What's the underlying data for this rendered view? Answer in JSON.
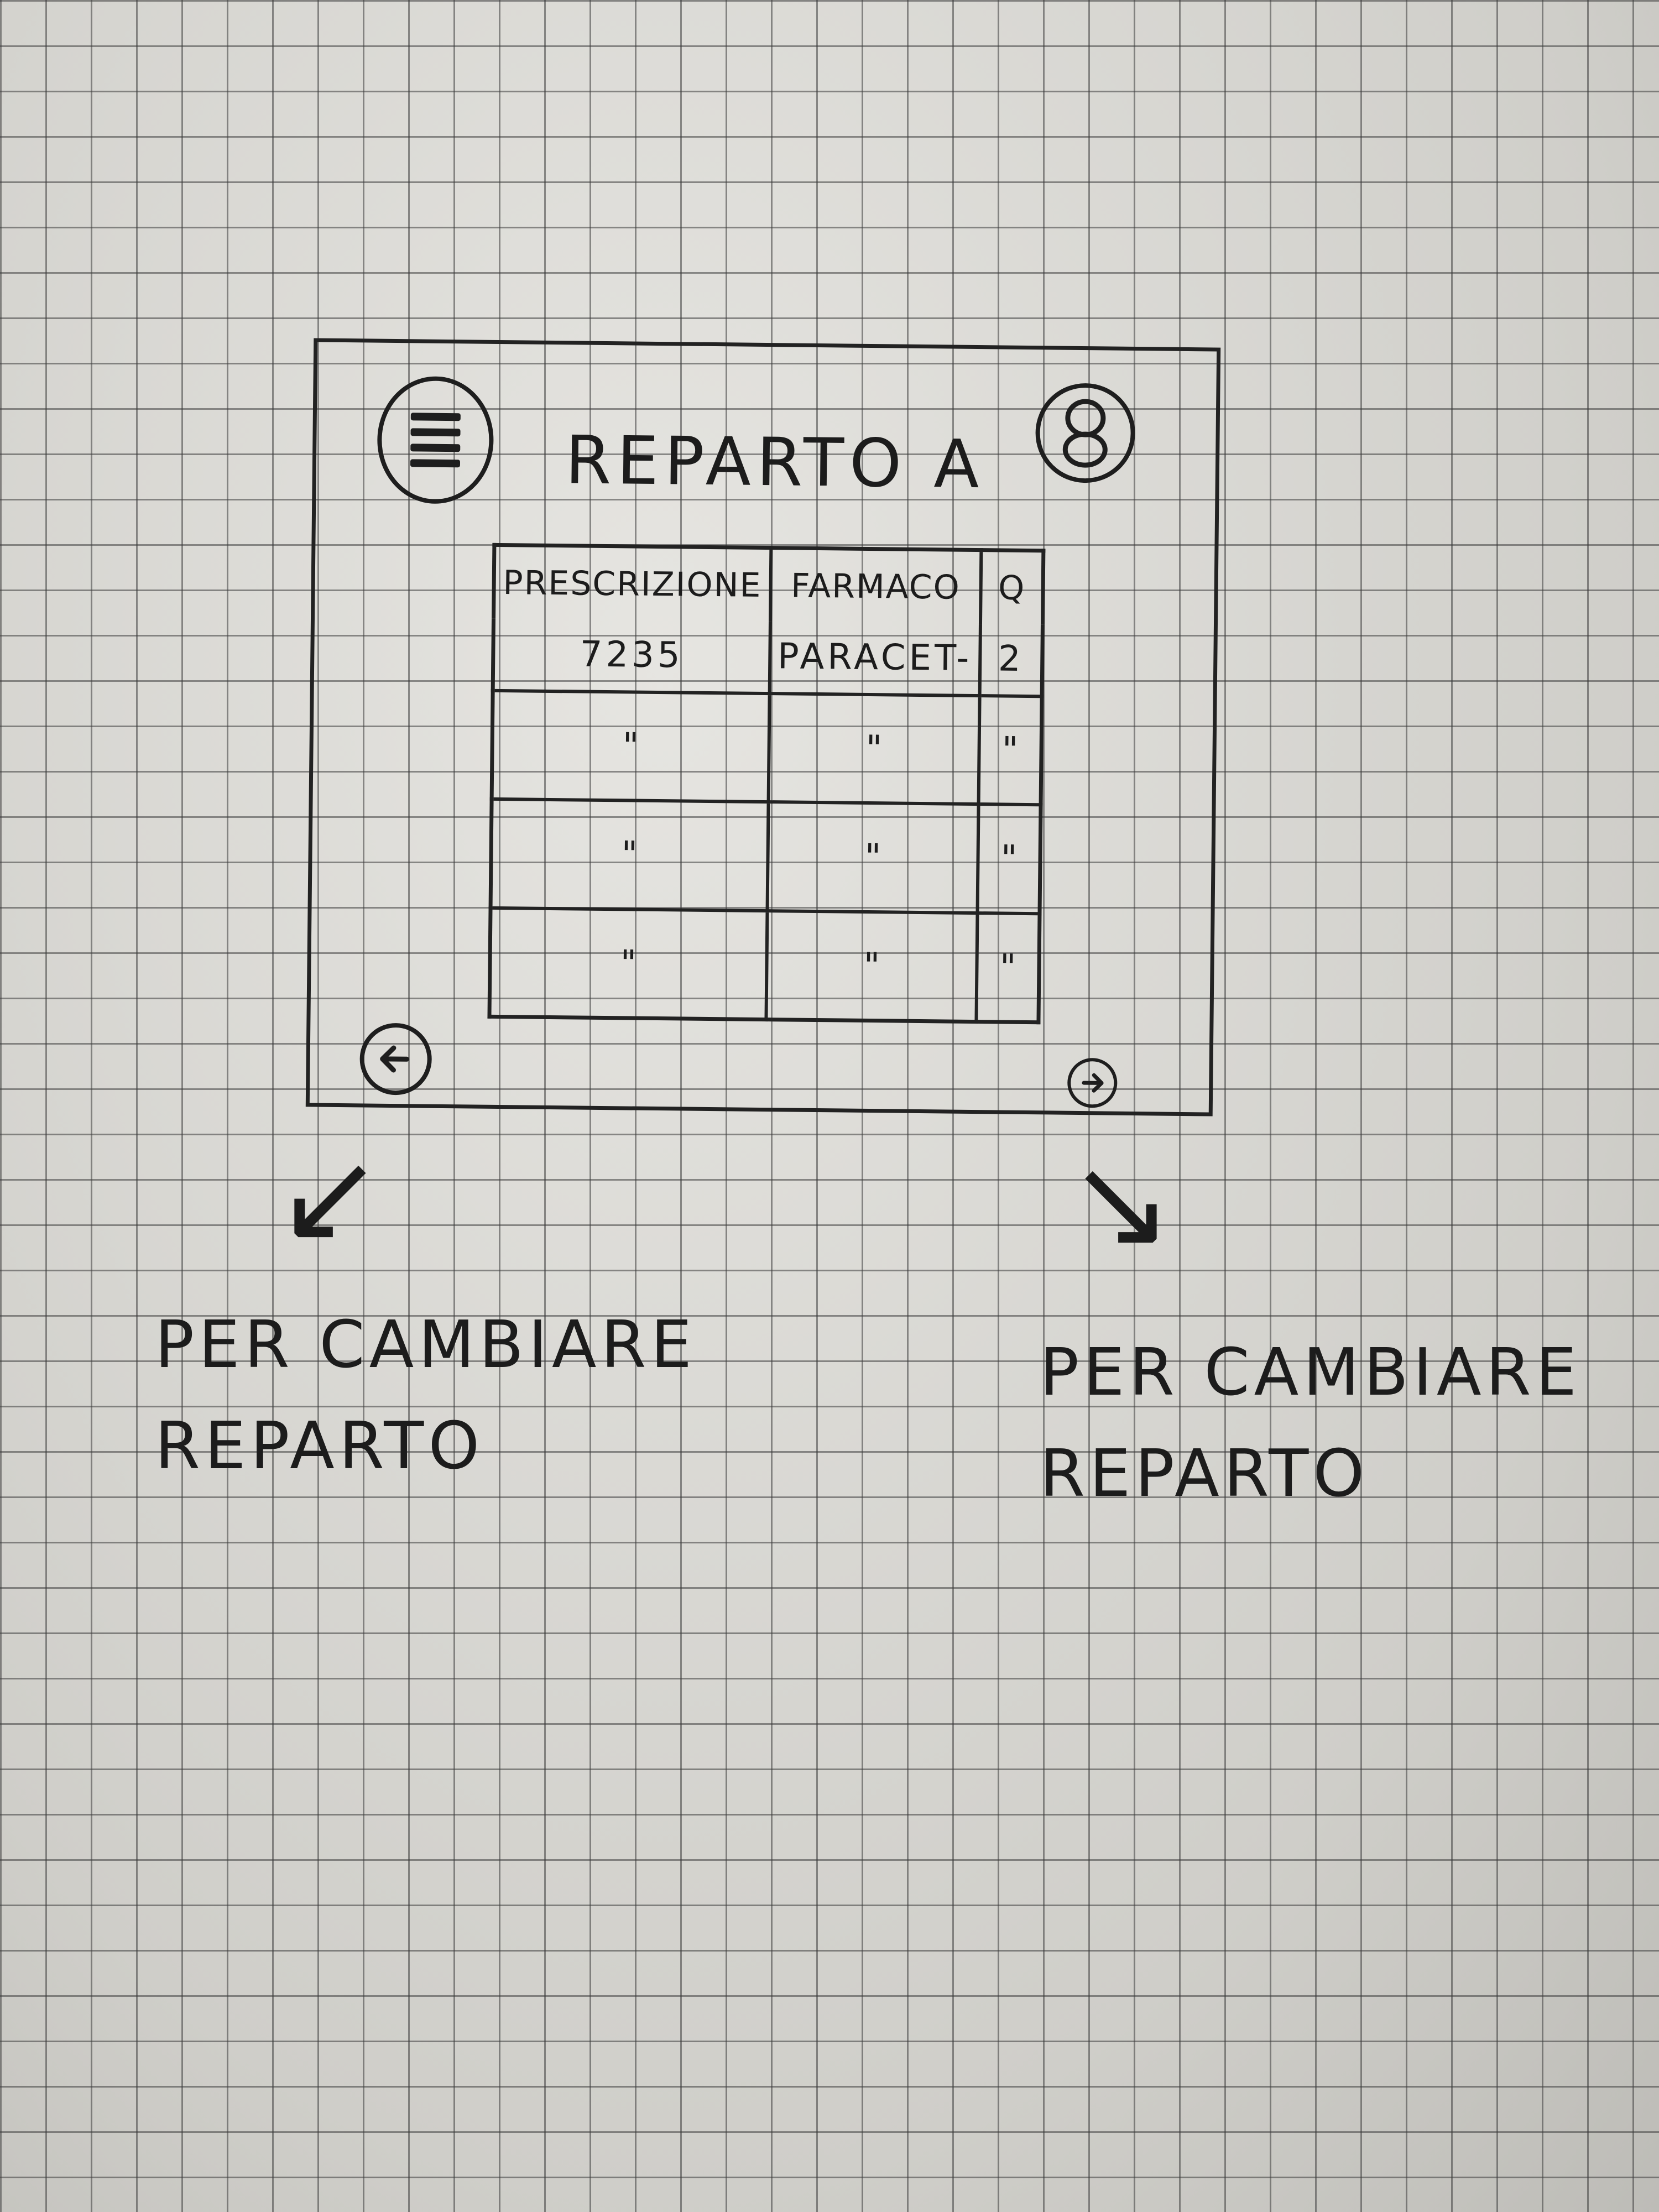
{
  "header": {
    "title": "REPARTO A",
    "menu_icon": "hamburger-menu-icon",
    "profile_icon": "user-icon"
  },
  "table": {
    "columns": [
      "PRESCRIZIONE",
      "FARMACO",
      "Q"
    ],
    "rows": [
      [
        "7235",
        "PARACET-",
        "2"
      ],
      [
        "\"",
        "\"",
        "\""
      ],
      [
        "\"",
        "\"",
        "\""
      ],
      [
        "\"",
        "\"",
        "\""
      ]
    ]
  },
  "footer": {
    "prev_icon": "arrow-left-icon",
    "next_icon": "arrow-right-icon",
    "prev_glyph": "←",
    "next_glyph": "→"
  },
  "notes": {
    "left": {
      "line1": "PER CAMBIARE",
      "line2": "REPARTO"
    },
    "right": {
      "line1": "PER CAMBIARE",
      "line2": "REPARTO"
    }
  }
}
